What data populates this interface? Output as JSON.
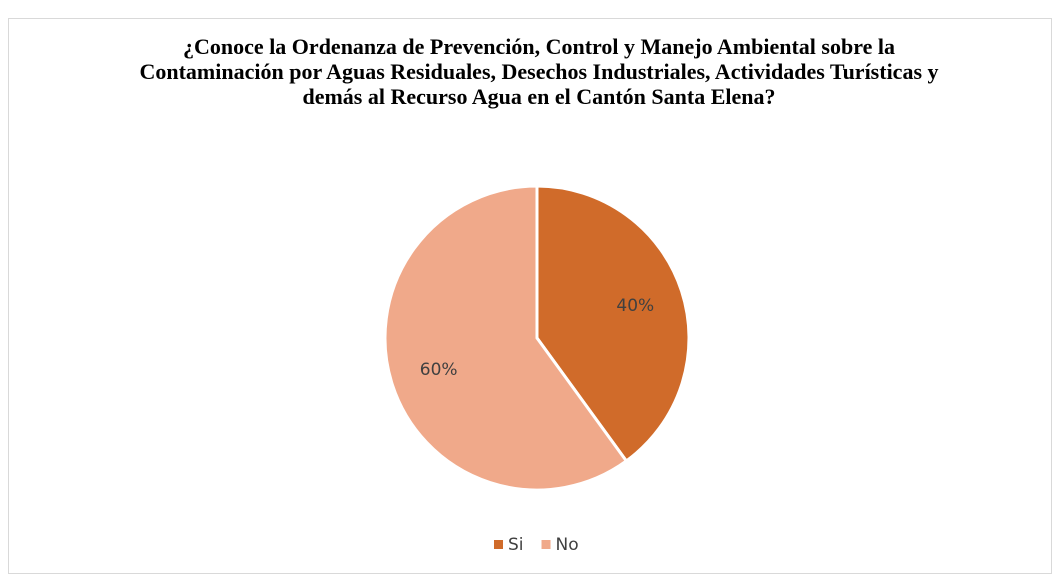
{
  "chart_data": {
    "type": "pie",
    "title": "¿Conoce la Ordenanza de Prevención, Control y Manejo Ambiental sobre la Contaminación por Aguas Residuales, Desechos Industriales, Actividades Turísticas y demás al Recurso Agua en el Cantón Santa Elena?",
    "categories": [
      "Si",
      "No"
    ],
    "values": [
      40,
      60
    ],
    "value_labels": [
      "40%",
      "60%"
    ],
    "colors": [
      "#d06b2a",
      "#f0a98a"
    ],
    "legend": "bottom"
  }
}
